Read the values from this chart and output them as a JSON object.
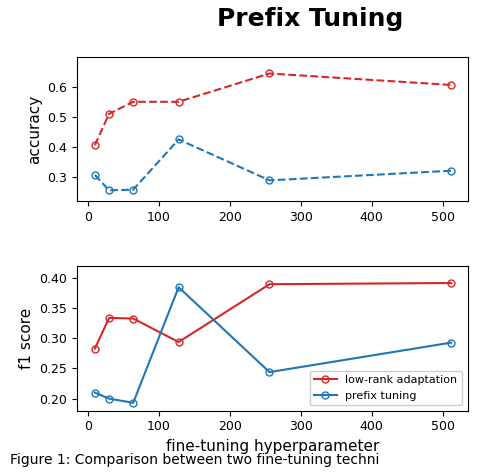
{
  "x": [
    10,
    30,
    64,
    128,
    256,
    512
  ],
  "accuracy_lora": [
    0.406,
    0.51,
    0.55,
    0.55,
    0.644,
    0.606
  ],
  "accuracy_prefix": [
    0.307,
    0.256,
    0.258,
    0.425,
    0.289,
    0.321
  ],
  "f1_lora": [
    0.283,
    0.334,
    0.333,
    0.294,
    0.39,
    0.392
  ],
  "f1_prefix": [
    0.21,
    0.2,
    0.193,
    0.385,
    0.244,
    0.293
  ],
  "lora_color": "#d62728",
  "prefix_color": "#1f77b4",
  "lora_label": "low-rank adaptation",
  "prefix_label": "prefix tuning",
  "xlabel": "fine-tuning hyperparameter",
  "ylabel_top": "accuracy",
  "ylabel_bot": "f1 score",
  "suptitle": "Prefix Tuning",
  "caption": "Figure 1: Comparison between two fine-tuning techni",
  "acc_ylim": [
    0.22,
    0.7
  ],
  "f1_ylim": [
    0.18,
    0.42
  ],
  "acc_yticks": [
    0.3,
    0.4,
    0.5,
    0.6
  ],
  "f1_yticks": [
    0.2,
    0.25,
    0.3,
    0.35,
    0.4
  ],
  "xticks": [
    0,
    100,
    200,
    300,
    400,
    500
  ],
  "xlim": [
    -15,
    535
  ]
}
